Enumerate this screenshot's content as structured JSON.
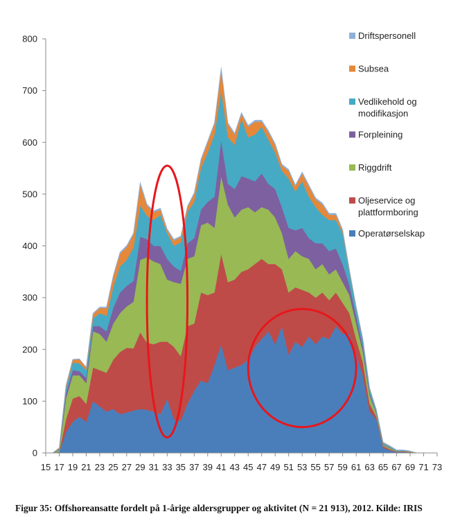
{
  "chart_data": {
    "type": "area",
    "stacked": true,
    "title": "",
    "xlabel": "",
    "ylabel": "",
    "ylim": [
      0,
      800
    ],
    "yticks": [
      0,
      100,
      200,
      300,
      400,
      500,
      600,
      700,
      800
    ],
    "xticks": [
      15,
      17,
      19,
      21,
      23,
      25,
      27,
      29,
      31,
      33,
      35,
      37,
      39,
      41,
      43,
      45,
      47,
      49,
      51,
      53,
      55,
      57,
      59,
      61,
      63,
      65,
      67,
      69,
      71,
      73
    ],
    "xlim": [
      15,
      73
    ],
    "grid": false,
    "legend_position": "right",
    "x": [
      15,
      16,
      17,
      18,
      19,
      20,
      21,
      22,
      23,
      24,
      25,
      26,
      27,
      28,
      29,
      30,
      31,
      32,
      33,
      34,
      35,
      36,
      37,
      38,
      39,
      40,
      41,
      42,
      43,
      44,
      45,
      46,
      47,
      48,
      49,
      50,
      51,
      52,
      53,
      54,
      55,
      56,
      57,
      58,
      59,
      60,
      61,
      62,
      63,
      64,
      65,
      66,
      67,
      68,
      69,
      70,
      71,
      72,
      73
    ],
    "series": [
      {
        "name": "Operatørselskap",
        "color": "#4a7ebb",
        "values": [
          0,
          0,
          2,
          40,
          60,
          70,
          60,
          100,
          90,
          80,
          85,
          75,
          78,
          82,
          85,
          83,
          80,
          75,
          105,
          65,
          62,
          95,
          120,
          140,
          135,
          170,
          210,
          160,
          165,
          170,
          180,
          205,
          220,
          235,
          210,
          245,
          190,
          215,
          205,
          225,
          210,
          225,
          220,
          245,
          230,
          230,
          190,
          150,
          80,
          65,
          10,
          5,
          2,
          2,
          1,
          0,
          0,
          0,
          0
        ]
      },
      {
        "name": "Oljeservice og plattformboring",
        "color": "#be4b48",
        "values": [
          0,
          0,
          0,
          25,
          45,
          40,
          35,
          65,
          70,
          75,
          95,
          120,
          125,
          120,
          148,
          130,
          130,
          140,
          110,
          140,
          125,
          150,
          130,
          170,
          170,
          140,
          175,
          170,
          170,
          180,
          175,
          160,
          155,
          130,
          155,
          110,
          120,
          105,
          110,
          85,
          90,
          85,
          75,
          65,
          60,
          40,
          30,
          25,
          15,
          5,
          3,
          2,
          1,
          1,
          1,
          0,
          0,
          0,
          0
        ]
      },
      {
        "name": "Riggdrift",
        "color": "#98b954",
        "values": [
          0,
          0,
          3,
          40,
          45,
          40,
          40,
          70,
          70,
          60,
          70,
          75,
          80,
          90,
          140,
          165,
          160,
          150,
          120,
          125,
          140,
          130,
          130,
          130,
          140,
          125,
          150,
          150,
          120,
          120,
          120,
          100,
          100,
          105,
          90,
          70,
          65,
          70,
          65,
          65,
          55,
          55,
          50,
          45,
          40,
          35,
          30,
          20,
          15,
          5,
          2,
          2,
          1,
          1,
          1,
          0,
          0,
          0,
          0
        ]
      },
      {
        "name": "Forpleining",
        "color": "#7d60a0",
        "values": [
          0,
          0,
          1,
          10,
          10,
          8,
          10,
          10,
          15,
          20,
          30,
          40,
          40,
          40,
          45,
          35,
          30,
          35,
          40,
          30,
          25,
          30,
          35,
          30,
          40,
          60,
          70,
          40,
          55,
          65,
          55,
          60,
          65,
          50,
          55,
          50,
          60,
          40,
          55,
          40,
          50,
          40,
          45,
          40,
          35,
          20,
          15,
          10,
          5,
          2,
          1,
          1,
          0,
          0,
          0,
          0,
          0,
          0,
          0
        ]
      },
      {
        "name": "Vedlikehold og modifikasjon",
        "color": "#46aac5",
        "values": [
          0,
          0,
          2,
          10,
          15,
          15,
          15,
          15,
          25,
          30,
          40,
          50,
          50,
          65,
          60,
          45,
          50,
          60,
          50,
          40,
          55,
          60,
          70,
          80,
          95,
          120,
          95,
          90,
          85,
          110,
          80,
          90,
          90,
          85,
          70,
          70,
          95,
          75,
          90,
          80,
          70,
          55,
          60,
          55,
          60,
          25,
          15,
          12,
          8,
          5,
          3,
          2,
          1,
          1,
          0,
          0,
          0,
          0,
          0
        ]
      },
      {
        "name": "Subsea",
        "color": "#e5883a",
        "values": [
          0,
          0,
          2,
          5,
          5,
          8,
          5,
          8,
          10,
          15,
          20,
          25,
          25,
          25,
          40,
          20,
          15,
          10,
          5,
          10,
          10,
          10,
          15,
          15,
          20,
          20,
          40,
          25,
          20,
          10,
          20,
          25,
          10,
          15,
          15,
          10,
          15,
          10,
          15,
          20,
          15,
          20,
          10,
          10,
          5,
          3,
          2,
          2,
          2,
          1,
          1,
          1,
          0,
          0,
          0,
          0,
          0,
          0,
          0
        ]
      },
      {
        "name": "Driftspersonell",
        "color": "#8eb1dc",
        "values": [
          0,
          0,
          0,
          1,
          1,
          1,
          1,
          2,
          2,
          2,
          3,
          3,
          3,
          3,
          5,
          3,
          3,
          3,
          3,
          3,
          2,
          2,
          3,
          3,
          3,
          3,
          5,
          3,
          3,
          3,
          3,
          3,
          3,
          3,
          3,
          3,
          3,
          3,
          3,
          3,
          3,
          3,
          3,
          3,
          2,
          2,
          2,
          2,
          1,
          1,
          1,
          1,
          1,
          1,
          1,
          0,
          0,
          0,
          0
        ]
      }
    ],
    "annotations": [
      {
        "shape": "ellipse",
        "color": "#e8161b",
        "x_from": 30,
        "x_to": 36,
        "y_from": 30,
        "y_to": 555
      },
      {
        "shape": "ellipse",
        "color": "#e8161b",
        "x_from": 45,
        "x_to": 61,
        "y_from": 50,
        "y_to": 278
      }
    ]
  },
  "caption": "Figur 35: Offshoreansatte fordelt på 1-årige aldersgrupper og aktivitet (N = 21 913), 2012. Kilde: IRIS"
}
